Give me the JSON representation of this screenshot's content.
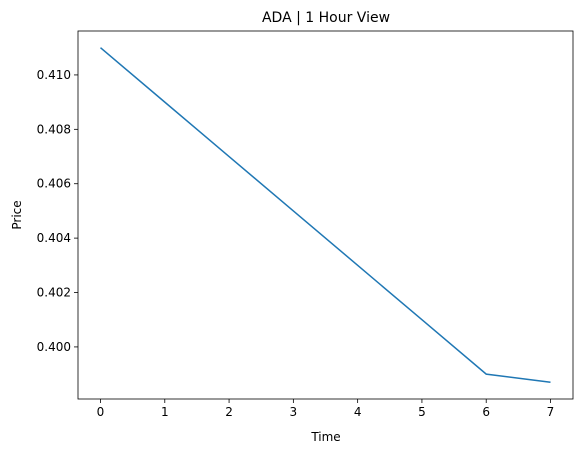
{
  "chart_data": {
    "type": "line",
    "title": "ADA | 1 Hour View",
    "xlabel": "Time",
    "ylabel": "Price",
    "x": [
      0,
      1,
      2,
      3,
      4,
      5,
      6,
      7
    ],
    "series": [
      {
        "color": "#1f77b4",
        "values": [
          0.411,
          0.409,
          0.407,
          0.405,
          0.403,
          0.401,
          0.399,
          0.3987
        ]
      }
    ],
    "xlim": [
      -0.35,
      7.35
    ],
    "xticks": [
      0,
      1,
      2,
      3,
      4,
      5,
      6,
      7
    ],
    "ylim": [
      0.398085,
      0.411615
    ],
    "yticks": [
      {
        "value": 0.4,
        "label": "0.400"
      },
      {
        "value": 0.402,
        "label": "0.402"
      },
      {
        "value": 0.404,
        "label": "0.404"
      },
      {
        "value": 0.406,
        "label": "0.406"
      },
      {
        "value": 0.408,
        "label": "0.408"
      },
      {
        "value": 0.41,
        "label": "0.410"
      }
    ]
  }
}
